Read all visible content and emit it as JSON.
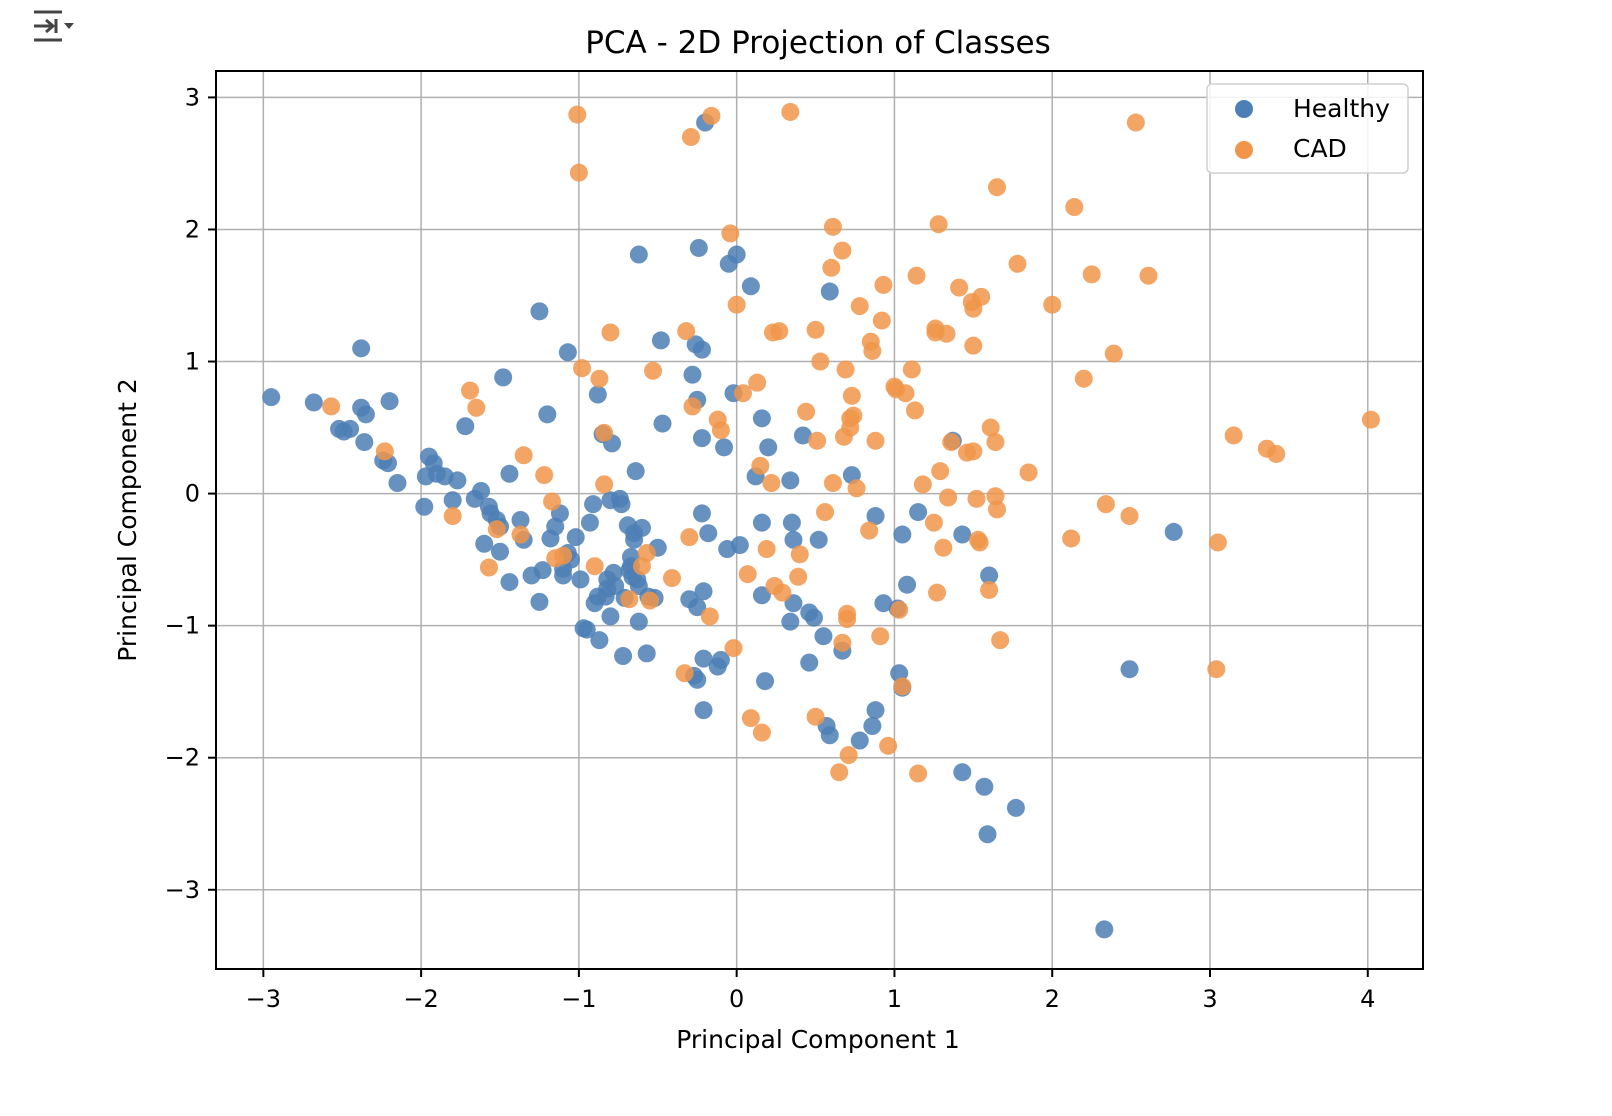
{
  "toolbar": {
    "output_toggle_icon": "collapse-output-icon"
  },
  "chart_data": {
    "type": "scatter",
    "title": "PCA - 2D Projection of Classes",
    "xlabel": "Principal Component 1",
    "ylabel": "Principal Component 2",
    "xlim": [
      -3.3,
      4.35
    ],
    "ylim": [
      -3.6,
      3.2
    ],
    "xticks": [
      -3,
      -2,
      -1,
      0,
      1,
      2,
      3,
      4
    ],
    "yticks": [
      -3,
      -2,
      -1,
      0,
      1,
      2,
      3
    ],
    "xtick_labels": [
      "−3",
      "−2",
      "−1",
      "0",
      "1",
      "2",
      "3",
      "4"
    ],
    "ytick_labels": [
      "−3",
      "−2",
      "−1",
      "0",
      "1",
      "2",
      "3"
    ],
    "grid": true,
    "legend_position": "top-right",
    "series": [
      {
        "name": "Healthy",
        "color": "#4c7fb5",
        "points": [
          [
            -2.95,
            0.73
          ],
          [
            -2.68,
            0.69
          ],
          [
            -2.52,
            0.49
          ],
          [
            -2.49,
            0.47
          ],
          [
            -2.45,
            0.49
          ],
          [
            -2.38,
            1.1
          ],
          [
            -2.38,
            0.65
          ],
          [
            -2.35,
            0.6
          ],
          [
            -2.36,
            0.39
          ],
          [
            -2.24,
            0.25
          ],
          [
            -2.21,
            0.23
          ],
          [
            -2.2,
            0.7
          ],
          [
            -2.15,
            0.08
          ],
          [
            -1.98,
            -0.1
          ],
          [
            -1.97,
            0.13
          ],
          [
            -1.95,
            0.28
          ],
          [
            -1.92,
            0.23
          ],
          [
            -1.9,
            0.15
          ],
          [
            -1.85,
            0.13
          ],
          [
            -1.8,
            -0.05
          ],
          [
            -1.77,
            0.1
          ],
          [
            -1.72,
            0.51
          ],
          [
            -1.66,
            -0.04
          ],
          [
            -1.62,
            0.02
          ],
          [
            -1.6,
            -0.38
          ],
          [
            -1.57,
            -0.1
          ],
          [
            -1.56,
            -0.15
          ],
          [
            -1.52,
            -0.2
          ],
          [
            -1.5,
            -0.25
          ],
          [
            -1.5,
            -0.44
          ],
          [
            -1.48,
            0.88
          ],
          [
            -1.44,
            -0.67
          ],
          [
            -1.44,
            0.15
          ],
          [
            -1.37,
            -0.2
          ],
          [
            -1.35,
            -0.35
          ],
          [
            -1.3,
            -0.62
          ],
          [
            -1.25,
            -0.82
          ],
          [
            -1.25,
            1.38
          ],
          [
            -1.23,
            -0.58
          ],
          [
            -1.2,
            0.6
          ],
          [
            -1.18,
            -0.34
          ],
          [
            -1.15,
            -0.25
          ],
          [
            -1.12,
            -0.15
          ],
          [
            -1.1,
            -0.57
          ],
          [
            -1.1,
            -0.62
          ],
          [
            -1.07,
            -0.45
          ],
          [
            -1.07,
            1.07
          ],
          [
            -1.05,
            -0.5
          ],
          [
            -1.02,
            -0.33
          ],
          [
            -0.99,
            -0.65
          ],
          [
            -0.97,
            -1.02
          ],
          [
            -0.95,
            -1.03
          ],
          [
            -0.93,
            -0.22
          ],
          [
            -0.91,
            -0.08
          ],
          [
            -0.9,
            -0.83
          ],
          [
            -0.88,
            0.75
          ],
          [
            -0.88,
            -0.78
          ],
          [
            -0.87,
            -1.11
          ],
          [
            -0.85,
            0.45
          ],
          [
            -0.83,
            -0.78
          ],
          [
            -0.82,
            -0.72
          ],
          [
            -0.82,
            -0.65
          ],
          [
            -0.8,
            -0.05
          ],
          [
            -0.8,
            -0.93
          ],
          [
            -0.79,
            0.38
          ],
          [
            -0.78,
            -0.6
          ],
          [
            -0.77,
            -0.7
          ],
          [
            -0.74,
            -0.04
          ],
          [
            -0.73,
            -0.08
          ],
          [
            -0.72,
            -1.23
          ],
          [
            -0.71,
            -0.79
          ],
          [
            -0.69,
            -0.24
          ],
          [
            -0.68,
            -0.58
          ],
          [
            -0.67,
            -0.55
          ],
          [
            -0.67,
            -0.48
          ],
          [
            -0.66,
            -0.63
          ],
          [
            -0.65,
            -0.35
          ],
          [
            -0.65,
            -0.3
          ],
          [
            -0.64,
            0.17
          ],
          [
            -0.63,
            -0.65
          ],
          [
            -0.62,
            -0.97
          ],
          [
            -0.62,
            -0.7
          ],
          [
            -0.62,
            1.81
          ],
          [
            -0.6,
            -0.26
          ],
          [
            -0.57,
            -1.21
          ],
          [
            -0.56,
            -0.78
          ],
          [
            -0.52,
            -0.79
          ],
          [
            -0.5,
            -0.41
          ],
          [
            -0.48,
            1.16
          ],
          [
            -0.47,
            0.53
          ],
          [
            -0.3,
            -0.8
          ],
          [
            -0.28,
            0.9
          ],
          [
            -0.27,
            -1.38
          ],
          [
            -0.26,
            1.13
          ],
          [
            -0.25,
            -1.41
          ],
          [
            -0.25,
            0.71
          ],
          [
            -0.25,
            -0.86
          ],
          [
            -0.24,
            1.86
          ],
          [
            -0.22,
            0.42
          ],
          [
            -0.22,
            -0.15
          ],
          [
            -0.22,
            1.09
          ],
          [
            -0.21,
            -0.74
          ],
          [
            -0.21,
            -1.25
          ],
          [
            -0.21,
            -1.64
          ],
          [
            -0.2,
            2.81
          ],
          [
            -0.18,
            -0.3
          ],
          [
            -0.12,
            -1.31
          ],
          [
            -0.1,
            -1.26
          ],
          [
            -0.08,
            0.35
          ],
          [
            -0.06,
            -0.42
          ],
          [
            -0.05,
            1.74
          ],
          [
            -0.02,
            0.76
          ],
          [
            0.0,
            1.81
          ],
          [
            0.02,
            -0.39
          ],
          [
            0.09,
            1.57
          ],
          [
            0.12,
            0.13
          ],
          [
            0.16,
            -0.22
          ],
          [
            0.16,
            0.57
          ],
          [
            0.16,
            -0.77
          ],
          [
            0.18,
            -1.42
          ],
          [
            0.2,
            0.35
          ],
          [
            0.34,
            0.1
          ],
          [
            0.34,
            -0.97
          ],
          [
            0.35,
            -0.22
          ],
          [
            0.36,
            -0.35
          ],
          [
            0.36,
            -0.83
          ],
          [
            0.42,
            0.44
          ],
          [
            0.46,
            -1.28
          ],
          [
            0.46,
            -0.9
          ],
          [
            0.49,
            -0.94
          ],
          [
            0.52,
            -0.35
          ],
          [
            0.55,
            -1.08
          ],
          [
            0.57,
            -1.76
          ],
          [
            0.59,
            -1.83
          ],
          [
            0.59,
            1.53
          ],
          [
            0.67,
            -1.19
          ],
          [
            0.73,
            0.14
          ],
          [
            0.78,
            -1.87
          ],
          [
            0.88,
            -1.64
          ],
          [
            0.88,
            -0.17
          ],
          [
            0.86,
            -1.76
          ],
          [
            0.93,
            -0.83
          ],
          [
            1.02,
            -0.87
          ],
          [
            1.03,
            -1.36
          ],
          [
            1.05,
            -0.31
          ],
          [
            1.05,
            -1.47
          ],
          [
            1.08,
            -0.69
          ],
          [
            1.15,
            -0.14
          ],
          [
            1.37,
            0.4
          ],
          [
            1.43,
            -0.31
          ],
          [
            1.43,
            -2.11
          ],
          [
            1.57,
            -2.22
          ],
          [
            1.59,
            -2.58
          ],
          [
            1.6,
            -0.62
          ],
          [
            1.77,
            -2.38
          ],
          [
            2.33,
            -3.3
          ],
          [
            2.49,
            -1.33
          ],
          [
            2.77,
            -0.29
          ]
        ]
      },
      {
        "name": "CAD",
        "color": "#f0954a",
        "points": [
          [
            -2.57,
            0.66
          ],
          [
            -2.23,
            0.32
          ],
          [
            -1.8,
            -0.17
          ],
          [
            -1.69,
            0.78
          ],
          [
            -1.65,
            0.65
          ],
          [
            -1.57,
            -0.56
          ],
          [
            -1.52,
            -0.27
          ],
          [
            -1.37,
            -0.31
          ],
          [
            -1.35,
            0.29
          ],
          [
            -1.22,
            0.14
          ],
          [
            -1.17,
            -0.06
          ],
          [
            -1.15,
            -0.49
          ],
          [
            -1.1,
            -0.47
          ],
          [
            -0.98,
            0.95
          ],
          [
            -1.0,
            2.43
          ],
          [
            -1.01,
            2.87
          ],
          [
            -0.9,
            -0.55
          ],
          [
            -0.87,
            0.87
          ],
          [
            -0.84,
            0.46
          ],
          [
            -0.84,
            0.07
          ],
          [
            -0.8,
            1.22
          ],
          [
            -0.68,
            -0.8
          ],
          [
            -0.6,
            -0.55
          ],
          [
            -0.57,
            -0.45
          ],
          [
            -0.55,
            -0.81
          ],
          [
            -0.53,
            0.93
          ],
          [
            -0.41,
            -0.64
          ],
          [
            -0.33,
            -1.36
          ],
          [
            -0.32,
            1.23
          ],
          [
            -0.3,
            -0.33
          ],
          [
            -0.29,
            2.7
          ],
          [
            -0.28,
            0.66
          ],
          [
            -0.17,
            -0.93
          ],
          [
            -0.16,
            2.86
          ],
          [
            -0.12,
            0.56
          ],
          [
            -0.1,
            0.48
          ],
          [
            -0.04,
            1.97
          ],
          [
            -0.02,
            -1.17
          ],
          [
            0.0,
            1.43
          ],
          [
            0.04,
            0.76
          ],
          [
            0.07,
            -0.61
          ],
          [
            0.09,
            -1.7
          ],
          [
            0.13,
            0.84
          ],
          [
            0.15,
            0.21
          ],
          [
            0.16,
            -1.81
          ],
          [
            0.19,
            -0.42
          ],
          [
            0.22,
            0.08
          ],
          [
            0.23,
            1.22
          ],
          [
            0.24,
            -0.7
          ],
          [
            0.27,
            1.23
          ],
          [
            0.29,
            -0.75
          ],
          [
            0.34,
            2.89
          ],
          [
            0.39,
            -0.63
          ],
          [
            0.4,
            -0.46
          ],
          [
            0.44,
            0.62
          ],
          [
            0.5,
            -1.69
          ],
          [
            0.5,
            1.24
          ],
          [
            0.51,
            0.4
          ],
          [
            0.53,
            1.0
          ],
          [
            0.56,
            -0.14
          ],
          [
            0.6,
            1.71
          ],
          [
            0.61,
            0.08
          ],
          [
            0.61,
            2.02
          ],
          [
            0.65,
            -2.11
          ],
          [
            0.67,
            -1.13
          ],
          [
            0.67,
            1.84
          ],
          [
            0.68,
            0.43
          ],
          [
            0.69,
            0.94
          ],
          [
            0.7,
            -0.91
          ],
          [
            0.7,
            -0.95
          ],
          [
            0.71,
            -1.98
          ],
          [
            0.72,
            0.5
          ],
          [
            0.72,
            0.57
          ],
          [
            0.73,
            0.74
          ],
          [
            0.74,
            0.59
          ],
          [
            0.76,
            0.04
          ],
          [
            0.78,
            1.42
          ],
          [
            0.84,
            -0.28
          ],
          [
            0.85,
            1.15
          ],
          [
            0.86,
            1.08
          ],
          [
            0.88,
            0.4
          ],
          [
            0.91,
            -1.08
          ],
          [
            0.92,
            1.31
          ],
          [
            0.93,
            1.58
          ],
          [
            0.96,
            -1.91
          ],
          [
            1.0,
            0.81
          ],
          [
            1.01,
            0.79
          ],
          [
            1.03,
            -0.88
          ],
          [
            1.05,
            -1.46
          ],
          [
            1.07,
            0.76
          ],
          [
            1.11,
            0.94
          ],
          [
            1.13,
            0.63
          ],
          [
            1.14,
            1.65
          ],
          [
            1.15,
            -2.12
          ],
          [
            1.18,
            0.07
          ],
          [
            1.25,
            -0.22
          ],
          [
            1.26,
            1.22
          ],
          [
            1.26,
            1.25
          ],
          [
            1.27,
            -0.75
          ],
          [
            1.28,
            2.04
          ],
          [
            1.29,
            0.17
          ],
          [
            1.31,
            -0.41
          ],
          [
            1.33,
            1.21
          ],
          [
            1.34,
            -0.03
          ],
          [
            1.36,
            0.39
          ],
          [
            1.41,
            1.56
          ],
          [
            1.46,
            0.31
          ],
          [
            1.49,
            1.45
          ],
          [
            1.5,
            0.32
          ],
          [
            1.5,
            1.4
          ],
          [
            1.5,
            1.12
          ],
          [
            1.52,
            -0.04
          ],
          [
            1.53,
            -0.35
          ],
          [
            1.54,
            -0.37
          ],
          [
            1.55,
            1.49
          ],
          [
            1.6,
            -0.73
          ],
          [
            1.61,
            0.5
          ],
          [
            1.64,
            0.39
          ],
          [
            1.64,
            -0.02
          ],
          [
            1.65,
            -0.12
          ],
          [
            1.65,
            2.32
          ],
          [
            1.67,
            -1.11
          ],
          [
            1.78,
            1.74
          ],
          [
            1.85,
            0.16
          ],
          [
            2.0,
            1.43
          ],
          [
            2.12,
            -0.34
          ],
          [
            2.14,
            2.17
          ],
          [
            2.2,
            0.87
          ],
          [
            2.25,
            1.66
          ],
          [
            2.34,
            -0.08
          ],
          [
            2.39,
            1.06
          ],
          [
            2.49,
            -0.17
          ],
          [
            2.53,
            2.81
          ],
          [
            2.61,
            1.65
          ],
          [
            3.04,
            -1.33
          ],
          [
            3.05,
            -0.37
          ],
          [
            3.15,
            0.44
          ],
          [
            3.36,
            0.34
          ],
          [
            3.42,
            0.3
          ],
          [
            4.02,
            0.56
          ]
        ]
      }
    ]
  }
}
